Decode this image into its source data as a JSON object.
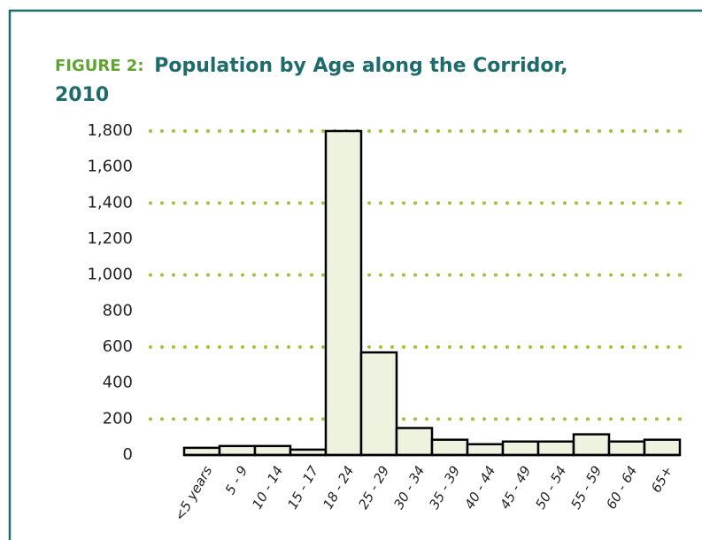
{
  "chart_data": {
    "type": "bar",
    "figure_label": "FIGURE 2:",
    "title": "Population by Age along the Corridor, 2010",
    "categories": [
      "<5 years",
      "5 - 9",
      "10 - 14",
      "15 - 17",
      "18 - 24",
      "25 - 29",
      "30 - 34",
      "35 - 39",
      "40 - 44",
      "45 - 49",
      "50 - 54",
      "55 - 59",
      "60 - 64",
      "65+"
    ],
    "values": [
      40,
      50,
      50,
      30,
      1800,
      570,
      150,
      85,
      60,
      75,
      75,
      115,
      75,
      85
    ],
    "color": "#eef3df",
    "ylim": [
      0,
      1800
    ],
    "yticks": [
      0,
      {
        "value": 200,
        "label": "200"
      },
      400,
      600,
      800,
      {
        "value": 1000,
        "label": "1,000"
      },
      {
        "value": 1200,
        "label": "1,200"
      },
      {
        "value": 1400,
        "label": "1,400"
      },
      {
        "value": 1600,
        "label": "1,600"
      },
      {
        "value": 1800,
        "label": "1,800"
      }
    ],
    "grid": true,
    "grid_start": 1,
    "grid_every": 2,
    "grid_color": "#9bc43a"
  }
}
